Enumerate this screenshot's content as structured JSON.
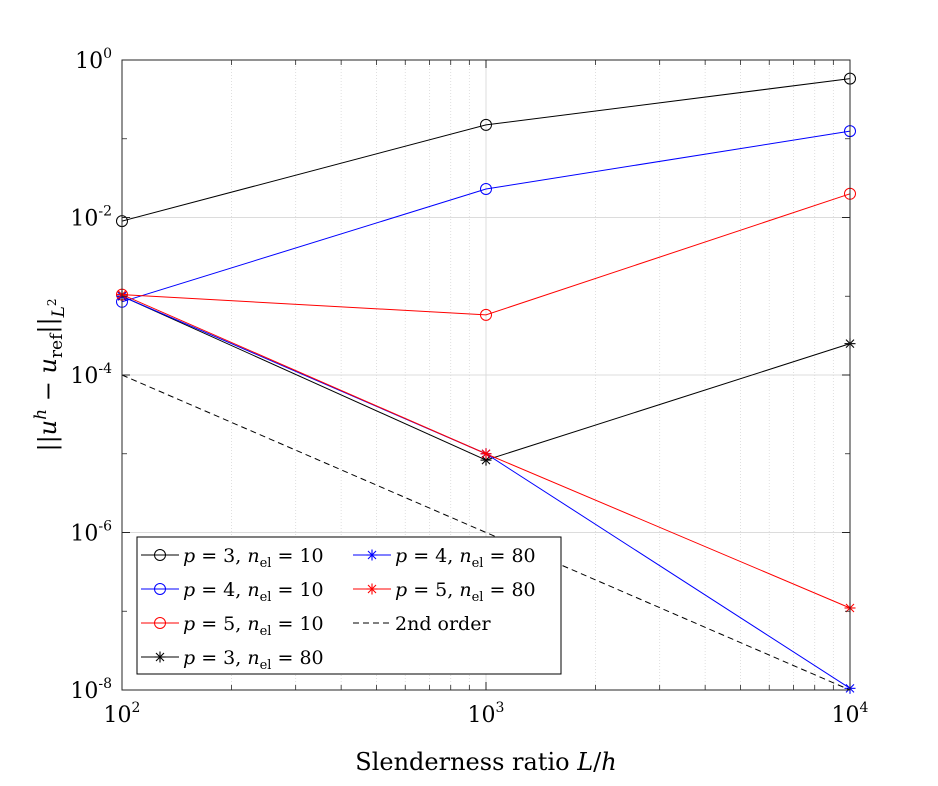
{
  "chart_data": {
    "type": "line",
    "xscale": "log",
    "yscale": "log",
    "xlim": [
      100,
      10000
    ],
    "ylim": [
      1e-08,
      1
    ],
    "grid": true,
    "minor_grid_x": true,
    "xlabel": "Slenderness ratio L/h",
    "ylabel": "||u^h - u_ref||_{L^2}",
    "x_ticks": [
      {
        "value": 100,
        "base": "10",
        "exp": "2"
      },
      {
        "value": 1000,
        "base": "10",
        "exp": "3"
      },
      {
        "value": 10000,
        "base": "10",
        "exp": "4"
      }
    ],
    "y_ticks": [
      {
        "value": 1,
        "base": "10",
        "exp": "0"
      },
      {
        "value": 0.01,
        "base": "10",
        "exp": "-2"
      },
      {
        "value": 0.0001,
        "base": "10",
        "exp": "-4"
      },
      {
        "value": 1e-06,
        "base": "10",
        "exp": "-6"
      },
      {
        "value": 1e-08,
        "base": "10",
        "exp": "-8"
      }
    ],
    "legend_position": "bottom-left",
    "series": [
      {
        "name": "p = 3, n_el = 10",
        "p": "3",
        "n": "10",
        "color": "#000000",
        "marker": "circle",
        "dash": "solid",
        "x": [
          100,
          1000,
          10000
        ],
        "y": [
          0.009,
          0.15,
          0.58
        ]
      },
      {
        "name": "p = 4, n_el = 10",
        "p": "4",
        "n": "10",
        "color": "#0000ff",
        "marker": "circle",
        "dash": "solid",
        "x": [
          100,
          1000,
          10000
        ],
        "y": [
          0.00085,
          0.023,
          0.125
        ]
      },
      {
        "name": "p = 5, n_el = 10",
        "p": "5",
        "n": "10",
        "color": "#ff0000",
        "marker": "circle",
        "dash": "solid",
        "x": [
          100,
          1000,
          10000
        ],
        "y": [
          0.00105,
          0.00058,
          0.02
        ]
      },
      {
        "name": "p = 3, n_el = 80",
        "p": "3",
        "n": "80",
        "color": "#000000",
        "marker": "star",
        "dash": "solid",
        "x": [
          100,
          1000,
          10000
        ],
        "y": [
          0.001,
          8.3e-06,
          0.00025
        ]
      },
      {
        "name": "p = 4, n_el = 80",
        "p": "4",
        "n": "80",
        "color": "#0000ff",
        "marker": "star",
        "dash": "solid",
        "x": [
          100,
          1000,
          10000
        ],
        "y": [
          0.001,
          1e-05,
          1.05e-08
        ]
      },
      {
        "name": "p = 5, n_el = 80",
        "p": "5",
        "n": "80",
        "color": "#ff0000",
        "marker": "star",
        "dash": "solid",
        "x": [
          100,
          1000,
          10000
        ],
        "y": [
          0.00105,
          1e-05,
          1.1e-07
        ]
      },
      {
        "name": "2nd order",
        "color": "#000000",
        "marker": "none",
        "dash": "dashed",
        "x": [
          100,
          10000
        ],
        "y": [
          0.0001,
          1e-08
        ]
      }
    ]
  }
}
